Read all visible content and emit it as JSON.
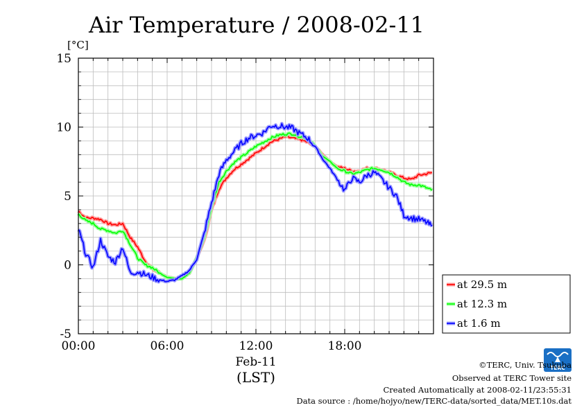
{
  "chart_data": {
    "type": "line",
    "title": "Air Temperature / 2008-02-11",
    "ylabel": "[°C]",
    "xlabel_date": "Feb-11",
    "xlabel_unit": "(LST)",
    "xlim": [
      0,
      24
    ],
    "ylim": [
      -5,
      15
    ],
    "x_tick_values": [
      0,
      6,
      12,
      18
    ],
    "x_tick_labels": [
      "00:00",
      "06:00",
      "12:00",
      "18:00"
    ],
    "y_tick_values": [
      -5,
      0,
      5,
      10,
      15
    ],
    "y_tick_labels": [
      "-5",
      "0",
      "5",
      "10",
      "15"
    ],
    "grid": true,
    "legend_position": "right",
    "x": [
      0,
      0.5,
      1,
      1.5,
      2,
      2.5,
      3,
      3.5,
      4,
      4.5,
      5,
      5.5,
      6,
      6.5,
      7,
      7.5,
      8,
      8.5,
      9,
      9.5,
      10,
      10.5,
      11,
      11.5,
      12,
      12.5,
      13,
      13.5,
      14,
      14.5,
      15,
      15.5,
      16,
      16.5,
      17,
      17.5,
      18,
      18.5,
      19,
      19.5,
      20,
      20.5,
      21,
      21.5,
      22,
      22.5,
      23,
      23.5,
      23.9
    ],
    "series": [
      {
        "name": "at 29.5 m",
        "color": "#ff0000",
        "values": [
          3.9,
          3.4,
          3.4,
          3.3,
          3.0,
          2.9,
          3.0,
          2.0,
          1.3,
          0.3,
          -0.3,
          -0.6,
          -0.9,
          -1.0,
          -1.0,
          -0.6,
          0.5,
          1.8,
          4.0,
          5.5,
          6.3,
          6.9,
          7.3,
          7.7,
          8.1,
          8.5,
          8.9,
          9.1,
          9.3,
          9.2,
          9.1,
          8.9,
          8.6,
          8.0,
          7.5,
          7.1,
          7.0,
          6.8,
          6.8,
          7.0,
          7.0,
          6.9,
          6.7,
          6.5,
          6.3,
          6.2,
          6.5,
          6.6,
          6.7
        ]
      },
      {
        "name": "at 12.3 m",
        "color": "#00ff00",
        "values": [
          3.7,
          3.2,
          3.0,
          2.6,
          2.5,
          2.3,
          2.5,
          1.5,
          0.5,
          0.0,
          -0.2,
          -0.6,
          -0.9,
          -1.0,
          -1.0,
          -0.6,
          0.5,
          2.0,
          4.2,
          6.0,
          6.8,
          7.4,
          7.8,
          8.2,
          8.6,
          8.9,
          9.2,
          9.4,
          9.5,
          9.5,
          9.3,
          9.2,
          8.6,
          7.9,
          7.5,
          7.0,
          6.8,
          6.6,
          6.7,
          6.9,
          7.0,
          6.9,
          6.7,
          6.4,
          6.0,
          5.8,
          5.8,
          5.6,
          5.4
        ]
      },
      {
        "name": "at 1.6 m",
        "color": "#0000ff",
        "values": [
          2.6,
          0.8,
          -0.2,
          1.8,
          0.6,
          0.2,
          1.3,
          -0.6,
          -0.5,
          -0.7,
          -0.9,
          -1.1,
          -1.2,
          -1.1,
          -0.8,
          -0.4,
          0.4,
          2.3,
          4.5,
          6.6,
          7.6,
          8.2,
          8.8,
          9.2,
          9.4,
          9.6,
          10.1,
          10.1,
          10.0,
          9.9,
          9.5,
          9.2,
          8.6,
          7.7,
          7.0,
          6.2,
          5.4,
          6.3,
          6.0,
          6.5,
          6.7,
          6.2,
          5.6,
          5.0,
          3.6,
          3.4,
          3.3,
          3.1,
          2.8
        ]
      }
    ]
  },
  "credits": {
    "copyright": "©TERC, Univ. Tsukuba",
    "observed": "Observed at TERC Tower site",
    "created": "Created Automatically at 2008-02-11/23:55:31",
    "source": "Data source : /home/hojyo/new/TERC-data/sorted_data/MET.10s.dat",
    "logo_text": "TERC",
    "logo_color": "#1a6fc4"
  }
}
